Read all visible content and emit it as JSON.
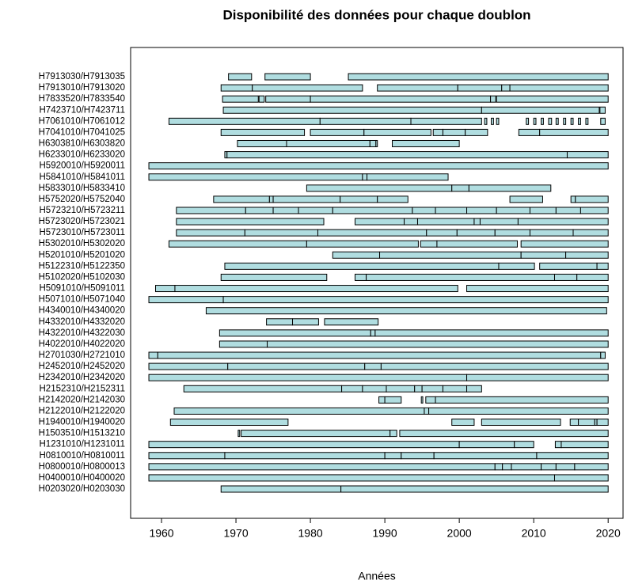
{
  "chart_data": {
    "type": "timeline",
    "title": "Disponibilité des données pour chaque doublon",
    "x_label": "Années",
    "xlim": [
      1955.85,
      2022
    ],
    "xticks": [
      1960,
      1970,
      1980,
      1990,
      2000,
      2010,
      2020
    ],
    "color": "#b0dde0",
    "rows": [
      {
        "label": "H7913030/H7913035",
        "segments": [
          [
            1969,
            1972.1
          ],
          [
            1973.9,
            1980
          ],
          [
            1985.1,
            2020
          ]
        ]
      },
      {
        "label": "H7913010/H7913020",
        "segments": [
          [
            1968,
            1972.2
          ],
          [
            1972.2,
            1987
          ],
          [
            1989,
            1999.8
          ],
          [
            1999.8,
            2005.7
          ],
          [
            2005.7,
            2006.8
          ],
          [
            2006.8,
            2020
          ]
        ]
      },
      {
        "label": "H7833520/H7833540",
        "segments": [
          [
            1968.2,
            1973
          ],
          [
            1973.1,
            1973.8
          ],
          [
            1974,
            1980
          ],
          [
            1980,
            2004.2
          ],
          [
            2004.2,
            2004.9
          ],
          [
            2005,
            2020
          ]
        ]
      },
      {
        "label": "H7423710/H7423711",
        "segments": [
          [
            1968.3,
            2003
          ],
          [
            2003,
            2018.8
          ],
          [
            2018.9,
            2019.6
          ]
        ]
      },
      {
        "label": "H7061010/H7061012",
        "segments": [
          [
            1961,
            1981.3
          ],
          [
            1981.3,
            1993.5
          ],
          [
            1993.5,
            2003
          ],
          [
            2003.4,
            2003.7
          ],
          [
            2004.3,
            2004.6
          ],
          [
            2005,
            2005.3
          ],
          [
            2009,
            2009.3
          ],
          [
            2010,
            2010.3
          ],
          [
            2011,
            2011.3
          ],
          [
            2012,
            2012.4
          ],
          [
            2013,
            2013.3
          ],
          [
            2014,
            2014.3
          ],
          [
            2015,
            2015.3
          ],
          [
            2016,
            2016.3
          ],
          [
            2017,
            2017.3
          ],
          [
            2019,
            2019.6
          ]
        ]
      },
      {
        "label": "H7041010/H7041025",
        "segments": [
          [
            1968,
            1979.2
          ],
          [
            1980,
            1987.2
          ],
          [
            1987.2,
            1996.2
          ],
          [
            1996.5,
            1997.8
          ],
          [
            1997.8,
            2000.8
          ],
          [
            2000.8,
            2003.8
          ],
          [
            2008,
            2010.8
          ],
          [
            2010.8,
            2020
          ]
        ]
      },
      {
        "label": "H6303810/H6303820",
        "segments": [
          [
            1970.2,
            1976.8
          ],
          [
            1976.8,
            1988
          ],
          [
            1988,
            1988.8
          ],
          [
            1988.8,
            1989
          ],
          [
            1991,
            2000
          ]
        ]
      },
      {
        "label": "H6233010/H6233020",
        "segments": [
          [
            1968.5,
            1968.8
          ],
          [
            1968.8,
            2014.5
          ],
          [
            2014.5,
            2020
          ]
        ]
      },
      {
        "label": "H5920010/H5920011",
        "segments": [
          [
            1958.3,
            2020
          ]
        ]
      },
      {
        "label": "H5841010/H5841011",
        "segments": [
          [
            1958.3,
            1987
          ],
          [
            1987,
            1987.6
          ],
          [
            1987.6,
            1998.5
          ]
        ]
      },
      {
        "label": "H5833010/H5833410",
        "segments": [
          [
            1979.5,
            1999
          ],
          [
            1999,
            2001.3
          ],
          [
            2001.3,
            2012.3
          ]
        ]
      },
      {
        "label": "H5752020/H5752040",
        "segments": [
          [
            1967,
            1974.5
          ],
          [
            1974.5,
            1975
          ],
          [
            1975,
            1984
          ],
          [
            1984,
            1989
          ],
          [
            1989,
            1993.1
          ],
          [
            2006.8,
            2011.2
          ],
          [
            2015,
            2015.6
          ],
          [
            2015.6,
            2020
          ]
        ]
      },
      {
        "label": "H5723210/H5723211",
        "segments": [
          [
            1962,
            1971.3
          ],
          [
            1971.3,
            1975
          ],
          [
            1975,
            1978.4
          ],
          [
            1978.4,
            1983
          ],
          [
            1983,
            1993.7
          ],
          [
            1993.7,
            1996.8
          ],
          [
            1996.8,
            2001
          ],
          [
            2001,
            2005
          ],
          [
            2005,
            2009.5
          ],
          [
            2009.5,
            2013
          ],
          [
            2013,
            2016.3
          ],
          [
            2016.3,
            2020
          ]
        ]
      },
      {
        "label": "H5723020/H5723021",
        "segments": [
          [
            1962,
            1981.8
          ],
          [
            1986,
            1992.6
          ],
          [
            1992.6,
            1994.4
          ],
          [
            1994.4,
            2002
          ],
          [
            2002,
            2002.8
          ],
          [
            2002.8,
            2007.9
          ],
          [
            2007.9,
            2020
          ]
        ]
      },
      {
        "label": "H5723010/H5723011",
        "segments": [
          [
            1962,
            1971.2
          ],
          [
            1971.2,
            1981
          ],
          [
            1981,
            1995.6
          ],
          [
            1995.6,
            1999.7
          ],
          [
            1999.7,
            2004.8
          ],
          [
            2004.8,
            2009.5
          ],
          [
            2009.5,
            2015.3
          ],
          [
            2015.3,
            2020
          ]
        ]
      },
      {
        "label": "H5302010/H5302020",
        "segments": [
          [
            1961,
            1979.5
          ],
          [
            1979.5,
            1994.5
          ],
          [
            1994.8,
            1997
          ],
          [
            1997,
            2007.8
          ],
          [
            2008.3,
            2020
          ]
        ]
      },
      {
        "label": "H5201010/H5201020",
        "segments": [
          [
            1983,
            1989.3
          ],
          [
            1989.3,
            2008.3
          ],
          [
            2008.3,
            2014.3
          ],
          [
            2014.3,
            2020
          ]
        ]
      },
      {
        "label": "H5122310/H5122350",
        "segments": [
          [
            1968.5,
            2005.3
          ],
          [
            2005.3,
            2010.1
          ],
          [
            2010.8,
            2018.5
          ],
          [
            2018.5,
            2020
          ]
        ]
      },
      {
        "label": "H5102020/H5102030",
        "segments": [
          [
            1968,
            1982.2
          ],
          [
            1986,
            1987.5
          ],
          [
            1987.5,
            2012.8
          ],
          [
            2012.8,
            2015.8
          ],
          [
            2015.8,
            2020
          ]
        ]
      },
      {
        "label": "H5091010/H5091011",
        "segments": [
          [
            1959.2,
            1961.8
          ],
          [
            1961.8,
            1999.8
          ],
          [
            2001,
            2020
          ]
        ]
      },
      {
        "label": "H5071010/H5071040",
        "segments": [
          [
            1958.3,
            1968.3
          ],
          [
            1968.3,
            2020
          ]
        ]
      },
      {
        "label": "H4340010/H4340020",
        "segments": [
          [
            1966,
            2019.8
          ]
        ]
      },
      {
        "label": "H4332010/H4332020",
        "segments": [
          [
            1974.1,
            1977.6
          ],
          [
            1977.6,
            1981.1
          ],
          [
            1981.9,
            1989.1
          ]
        ]
      },
      {
        "label": "H4322010/H4322030",
        "segments": [
          [
            1967.8,
            1988.1
          ],
          [
            1988.1,
            1988.7
          ],
          [
            1988.7,
            2020
          ]
        ]
      },
      {
        "label": "H4022010/H4022020",
        "segments": [
          [
            1967.8,
            1974.2
          ],
          [
            1974.2,
            2020
          ]
        ]
      },
      {
        "label": "H2701030/H2721010",
        "segments": [
          [
            1958.3,
            1959.5
          ],
          [
            1959.5,
            2019
          ],
          [
            2019,
            2019.6
          ]
        ]
      },
      {
        "label": "H2452010/H2452020",
        "segments": [
          [
            1958.3,
            1968.9
          ],
          [
            1968.9,
            1987.3
          ],
          [
            1987.3,
            1989.5
          ],
          [
            1989.5,
            2020
          ]
        ]
      },
      {
        "label": "H2342010/H2342020",
        "segments": [
          [
            1958.3,
            2001
          ],
          [
            2001,
            2020
          ]
        ]
      },
      {
        "label": "H2152310/H2152311",
        "segments": [
          [
            1963,
            1984.2
          ],
          [
            1984.2,
            1987
          ],
          [
            1987,
            1990.2
          ],
          [
            1990.2,
            1994
          ],
          [
            1994,
            1995
          ],
          [
            1995,
            1997.8
          ],
          [
            1997.8,
            2001
          ],
          [
            2001,
            2003
          ]
        ]
      },
      {
        "label": "H2142020/H2142030",
        "segments": [
          [
            1989.2,
            1990
          ],
          [
            1990,
            1992.2
          ],
          [
            1994.9,
            1995.1
          ],
          [
            1995.5,
            1996.8
          ],
          [
            1996.8,
            2020
          ]
        ]
      },
      {
        "label": "H2122010/H2122020",
        "segments": [
          [
            1961.7,
            1995.3
          ],
          [
            1995.3,
            1995.9
          ],
          [
            1995.9,
            2020
          ]
        ]
      },
      {
        "label": "H1940010/H1940020",
        "segments": [
          [
            1961.2,
            1977
          ],
          [
            1999,
            2002
          ],
          [
            2003,
            2013.6
          ],
          [
            2014.9,
            2016
          ],
          [
            2016,
            2018.2
          ],
          [
            2018.2,
            2018.5
          ],
          [
            2018.5,
            2020
          ]
        ]
      },
      {
        "label": "H1503510/H1513210",
        "segments": [
          [
            1970.3,
            1970.5
          ],
          [
            1970.7,
            1990.7
          ],
          [
            1990.7,
            1991.6
          ],
          [
            1992,
            2020
          ]
        ]
      },
      {
        "label": "H1231010/H1231011",
        "segments": [
          [
            1958.3,
            2000
          ],
          [
            2000,
            2007.4
          ],
          [
            2007.4,
            2010
          ],
          [
            2012.9,
            2013.7
          ],
          [
            2013.7,
            2020
          ]
        ]
      },
      {
        "label": "H0810010/H0810011",
        "segments": [
          [
            1958.3,
            1968.5
          ],
          [
            1968.5,
            1990
          ],
          [
            1990,
            1992.2
          ],
          [
            1992.2,
            1996.6
          ],
          [
            1996.6,
            2010.4
          ],
          [
            2010.4,
            2020
          ]
        ]
      },
      {
        "label": "H0800010/H0800013",
        "segments": [
          [
            1958.3,
            2004.8
          ],
          [
            2004.8,
            2005.8
          ],
          [
            2005.8,
            2007
          ],
          [
            2007,
            2011
          ],
          [
            2011,
            2013
          ],
          [
            2013,
            2015.5
          ],
          [
            2015.5,
            2020
          ]
        ]
      },
      {
        "label": "H0400010/H0400020",
        "segments": [
          [
            1958.3,
            2012.8
          ],
          [
            2012.8,
            2020
          ]
        ]
      },
      {
        "label": "H0203020/H0203030",
        "segments": [
          [
            1968,
            1984.1
          ],
          [
            1984.1,
            2020
          ]
        ]
      }
    ]
  }
}
